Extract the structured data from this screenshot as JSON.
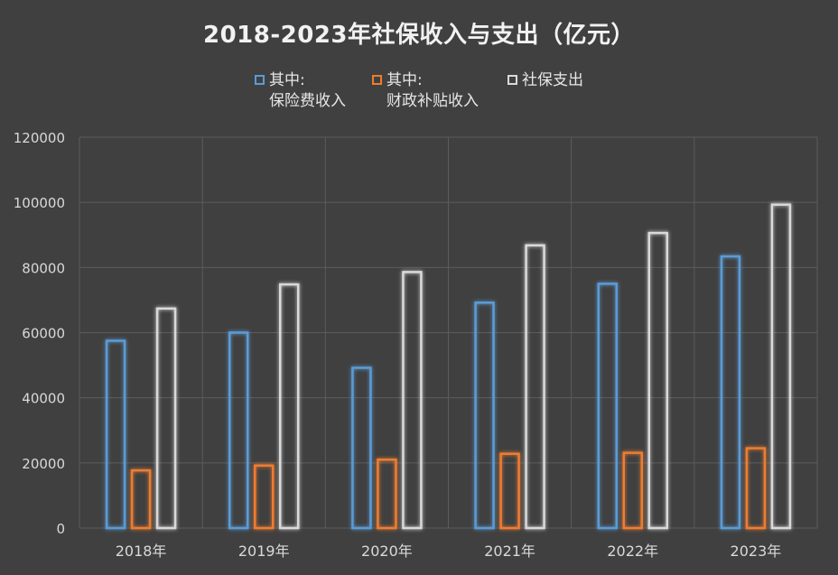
{
  "chart_data": {
    "type": "bar",
    "title": "2018-2023年社保收入与支出（亿元）",
    "categories": [
      "2018年",
      "2019年",
      "2020年",
      "2021年",
      "2022年",
      "2023年"
    ],
    "series": [
      {
        "name": "其中:\n保险费收入",
        "color": "#5b9bd5",
        "values": [
          57500,
          60000,
          49200,
          69200,
          75000,
          83400
        ]
      },
      {
        "name": "其中:\n财政补贴收入",
        "color": "#ed7d31",
        "values": [
          17700,
          19200,
          21000,
          22800,
          23100,
          24500
        ]
      },
      {
        "name": "社保支出",
        "color": "#d9d9d9",
        "values": [
          67400,
          74800,
          78600,
          86800,
          90600,
          99300
        ]
      }
    ],
    "yticks": [
      "0",
      "20000",
      "40000",
      "60000",
      "80000",
      "100000",
      "120000"
    ],
    "ylim": [
      0,
      120000
    ],
    "xlabel": "",
    "ylabel": "",
    "grid": true,
    "legend_position": "top"
  }
}
